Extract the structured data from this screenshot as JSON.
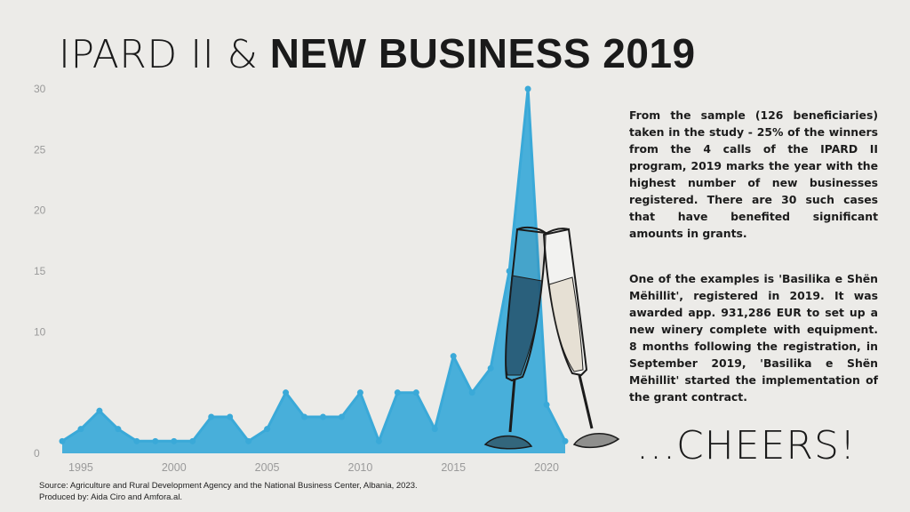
{
  "title": {
    "light": "IPARD II  &",
    "bold": "NEW  BUSINESS 2019"
  },
  "paragraphs": [
    "From the sample (126 beneficiaries) taken in the study - 25% of the winners from the 4 calls of the IPARD II program, 2019 marks the year with the highest number of new businesses registered. There are 30 such cases that have benefited significant amounts in grants.",
    "One of the examples is 'Basilika e Shën Mëhillit', registered in 2019. It was awarded app. 931,286 EUR to set up a new winery complete with equipment. 8 months following the registration, in September 2019, 'Basilika e Shën Mëhillit' started the implementation of the grant contract."
  ],
  "cheers": "...CHEERS!",
  "source": {
    "line1": "Source: Agriculture and Rural Development Agency and the National Business Center, Albania, 2023.",
    "line2": "Produced by: Aida Ciro and Amfora.al."
  },
  "colors": {
    "area": "#3aa9d8",
    "background": "#ecebe8",
    "tick": "#9a9a9a"
  },
  "chart_data": {
    "type": "area",
    "x": [
      1994,
      1995,
      1996,
      1997,
      1998,
      1999,
      2000,
      2001,
      2002,
      2003,
      2004,
      2005,
      2006,
      2007,
      2008,
      2009,
      2010,
      2011,
      2012,
      2013,
      2014,
      2015,
      2016,
      2017,
      2018,
      2019,
      2020,
      2021
    ],
    "values": [
      1,
      2,
      3.5,
      2,
      1,
      1,
      1,
      1,
      3,
      3,
      1,
      2,
      5,
      3,
      3,
      3,
      5,
      1,
      5,
      5,
      2,
      8,
      5,
      7,
      15,
      30,
      4,
      1
    ],
    "xticks": [
      1995,
      2000,
      2005,
      2010,
      2015,
      2020
    ],
    "xtick_labels": [
      "1995",
      "2000",
      "2005",
      "2010",
      "2015",
      "2020"
    ],
    "yticks": [
      0,
      10,
      15,
      20,
      25,
      30
    ],
    "ytick_labels": [
      "0",
      "10",
      "15",
      "20",
      "25",
      "30"
    ],
    "xlim": [
      1994,
      2021
    ],
    "ylim": [
      0,
      30
    ],
    "grid": false,
    "legend": "none"
  }
}
